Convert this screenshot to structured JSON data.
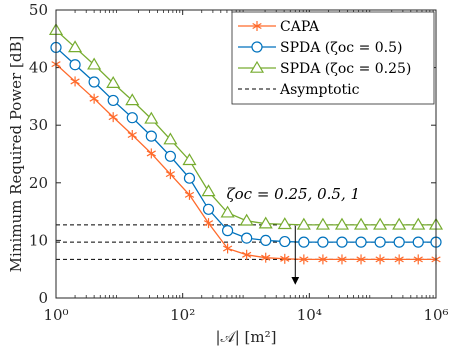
{
  "chart_data": {
    "type": "line",
    "xlabel": "|𝒜| [m²]",
    "ylabel": "Minimum Required Power [dB]",
    "xscale": "log10",
    "xlim": [
      1,
      1000000
    ],
    "ylim": [
      0,
      50
    ],
    "x_ticks": [
      1,
      100,
      10000,
      1000000
    ],
    "x_tick_labels": [
      "10⁰",
      "10²",
      "10⁴",
      "10⁶"
    ],
    "y_ticks": [
      0,
      10,
      20,
      30,
      40,
      50
    ],
    "y_tick_labels": [
      "0",
      "10",
      "20",
      "30",
      "40",
      "50"
    ],
    "grid": false,
    "legend_position": "top-right",
    "x": [
      1,
      2,
      4,
      8,
      16,
      32,
      64,
      128,
      256,
      512,
      1024,
      2048,
      4096,
      8192,
      16384,
      32768,
      65536,
      131072,
      262144,
      524288,
      1000000
    ],
    "series": [
      {
        "name": "CAPA",
        "color": "#ff6a2b",
        "marker": "asterisk",
        "values": [
          40.6,
          37.6,
          34.6,
          31.4,
          28.3,
          25.1,
          21.5,
          17.9,
          13.0,
          8.6,
          7.5,
          7.0,
          6.8,
          6.7,
          6.7,
          6.7,
          6.7,
          6.7,
          6.7,
          6.7,
          6.7
        ]
      },
      {
        "name": "SPDA (ζoc = 0.5)",
        "color": "#0072bd",
        "marker": "circle",
        "values": [
          43.5,
          40.5,
          37.5,
          34.3,
          31.3,
          28.1,
          24.6,
          20.8,
          15.4,
          11.7,
          10.4,
          10.0,
          9.8,
          9.7,
          9.7,
          9.7,
          9.7,
          9.7,
          9.7,
          9.7,
          9.7
        ]
      },
      {
        "name": "SPDA (ζoc = 0.25)",
        "color": "#77ac30",
        "marker": "triangle",
        "values": [
          46.5,
          43.5,
          40.5,
          37.3,
          34.3,
          31.1,
          27.5,
          23.9,
          18.5,
          14.8,
          13.4,
          12.9,
          12.8,
          12.7,
          12.7,
          12.7,
          12.7,
          12.7,
          12.7,
          12.7,
          12.7
        ]
      },
      {
        "name": "Asymptotic",
        "color": "#000000",
        "style": "dashed",
        "marker": "none",
        "levels": [
          6.7,
          9.7,
          12.7
        ]
      }
    ],
    "annotation": {
      "text": "ζoc = 0.25, 0.5, 1",
      "arrow_x": 6000,
      "arrow_y_from": 12.7,
      "arrow_y_to": 2.3
    }
  }
}
